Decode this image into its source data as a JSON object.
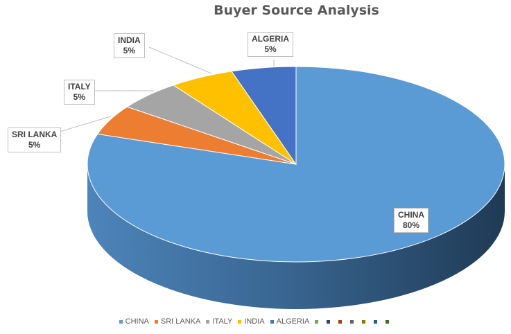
{
  "chart_data": {
    "type": "pie",
    "title": "Buyer Source Analysis",
    "slices": [
      {
        "label": "CHINA",
        "value": 80,
        "percent_label": "80%",
        "color": "#5B9BD5",
        "side_color": "#41719C"
      },
      {
        "label": "SRI LANKA",
        "value": 5,
        "percent_label": "5%",
        "color": "#ED7D31",
        "side_color": "#AE5A21"
      },
      {
        "label": "ITALY",
        "value": 5,
        "percent_label": "5%",
        "color": "#A5A5A5",
        "side_color": "#7A7A7A"
      },
      {
        "label": "INDIA",
        "value": 5,
        "percent_label": "5%",
        "color": "#FFC000",
        "side_color": "#BC8C00"
      },
      {
        "label": "ALGERIA",
        "value": 5,
        "percent_label": "5%",
        "color": "#4472C4",
        "side_color": "#2F528F"
      }
    ],
    "legend": {
      "position": "bottom",
      "entries": [
        {
          "label": "CHINA",
          "color": "#5B9BD5"
        },
        {
          "label": "SRI LANKA",
          "color": "#ED7D31"
        },
        {
          "label": "ITALY",
          "color": "#A5A5A5"
        },
        {
          "label": "INDIA",
          "color": "#FFC000"
        },
        {
          "label": "ALGERIA",
          "color": "#4472C4"
        },
        {
          "label": "",
          "color": "#70AD47"
        },
        {
          "label": "",
          "color": "#264478"
        },
        {
          "label": "",
          "color": "#9E480E"
        },
        {
          "label": "",
          "color": "#636363"
        },
        {
          "label": "",
          "color": "#997300"
        },
        {
          "label": "",
          "color": "#255E91"
        },
        {
          "label": "",
          "color": "#43682B"
        }
      ]
    }
  }
}
